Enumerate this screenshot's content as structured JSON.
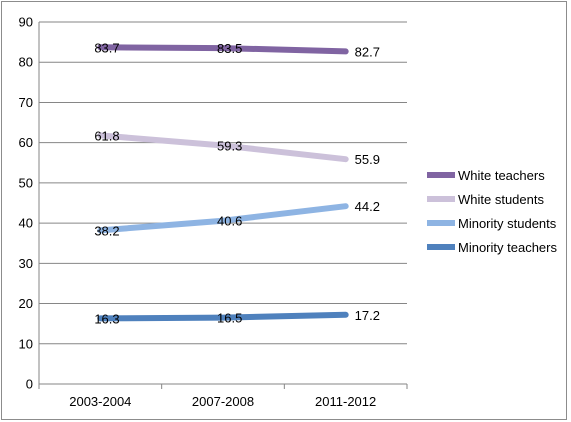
{
  "chart_data": {
    "type": "line",
    "title": "",
    "xlabel": "",
    "ylabel": "",
    "categories": [
      "2003-2004",
      "2007-2008",
      "2011-2012"
    ],
    "ylim": [
      0,
      90
    ],
    "yticks": [
      0,
      10,
      20,
      30,
      40,
      50,
      60,
      70,
      80,
      90
    ],
    "grid": "horizontal",
    "legend_position": "right",
    "series": [
      {
        "name": "White teachers",
        "values": [
          83.7,
          83.5,
          82.7
        ],
        "labels": [
          "83.7",
          "83.5",
          "82.7"
        ],
        "color": "#8064a2"
      },
      {
        "name": "White students",
        "values": [
          61.8,
          59.3,
          55.9
        ],
        "labels": [
          "61.8",
          "59.3",
          "55.9"
        ],
        "color": "#ccc1da"
      },
      {
        "name": "Minority students",
        "values": [
          38.2,
          40.6,
          44.2
        ],
        "labels": [
          "38.2",
          "40.6",
          "44.2"
        ],
        "color": "#8eb4e3"
      },
      {
        "name": "Minority teachers",
        "values": [
          16.3,
          16.5,
          17.2
        ],
        "labels": [
          "16.3",
          "16.5",
          "17.2"
        ],
        "color": "#4f81bd"
      }
    ]
  }
}
